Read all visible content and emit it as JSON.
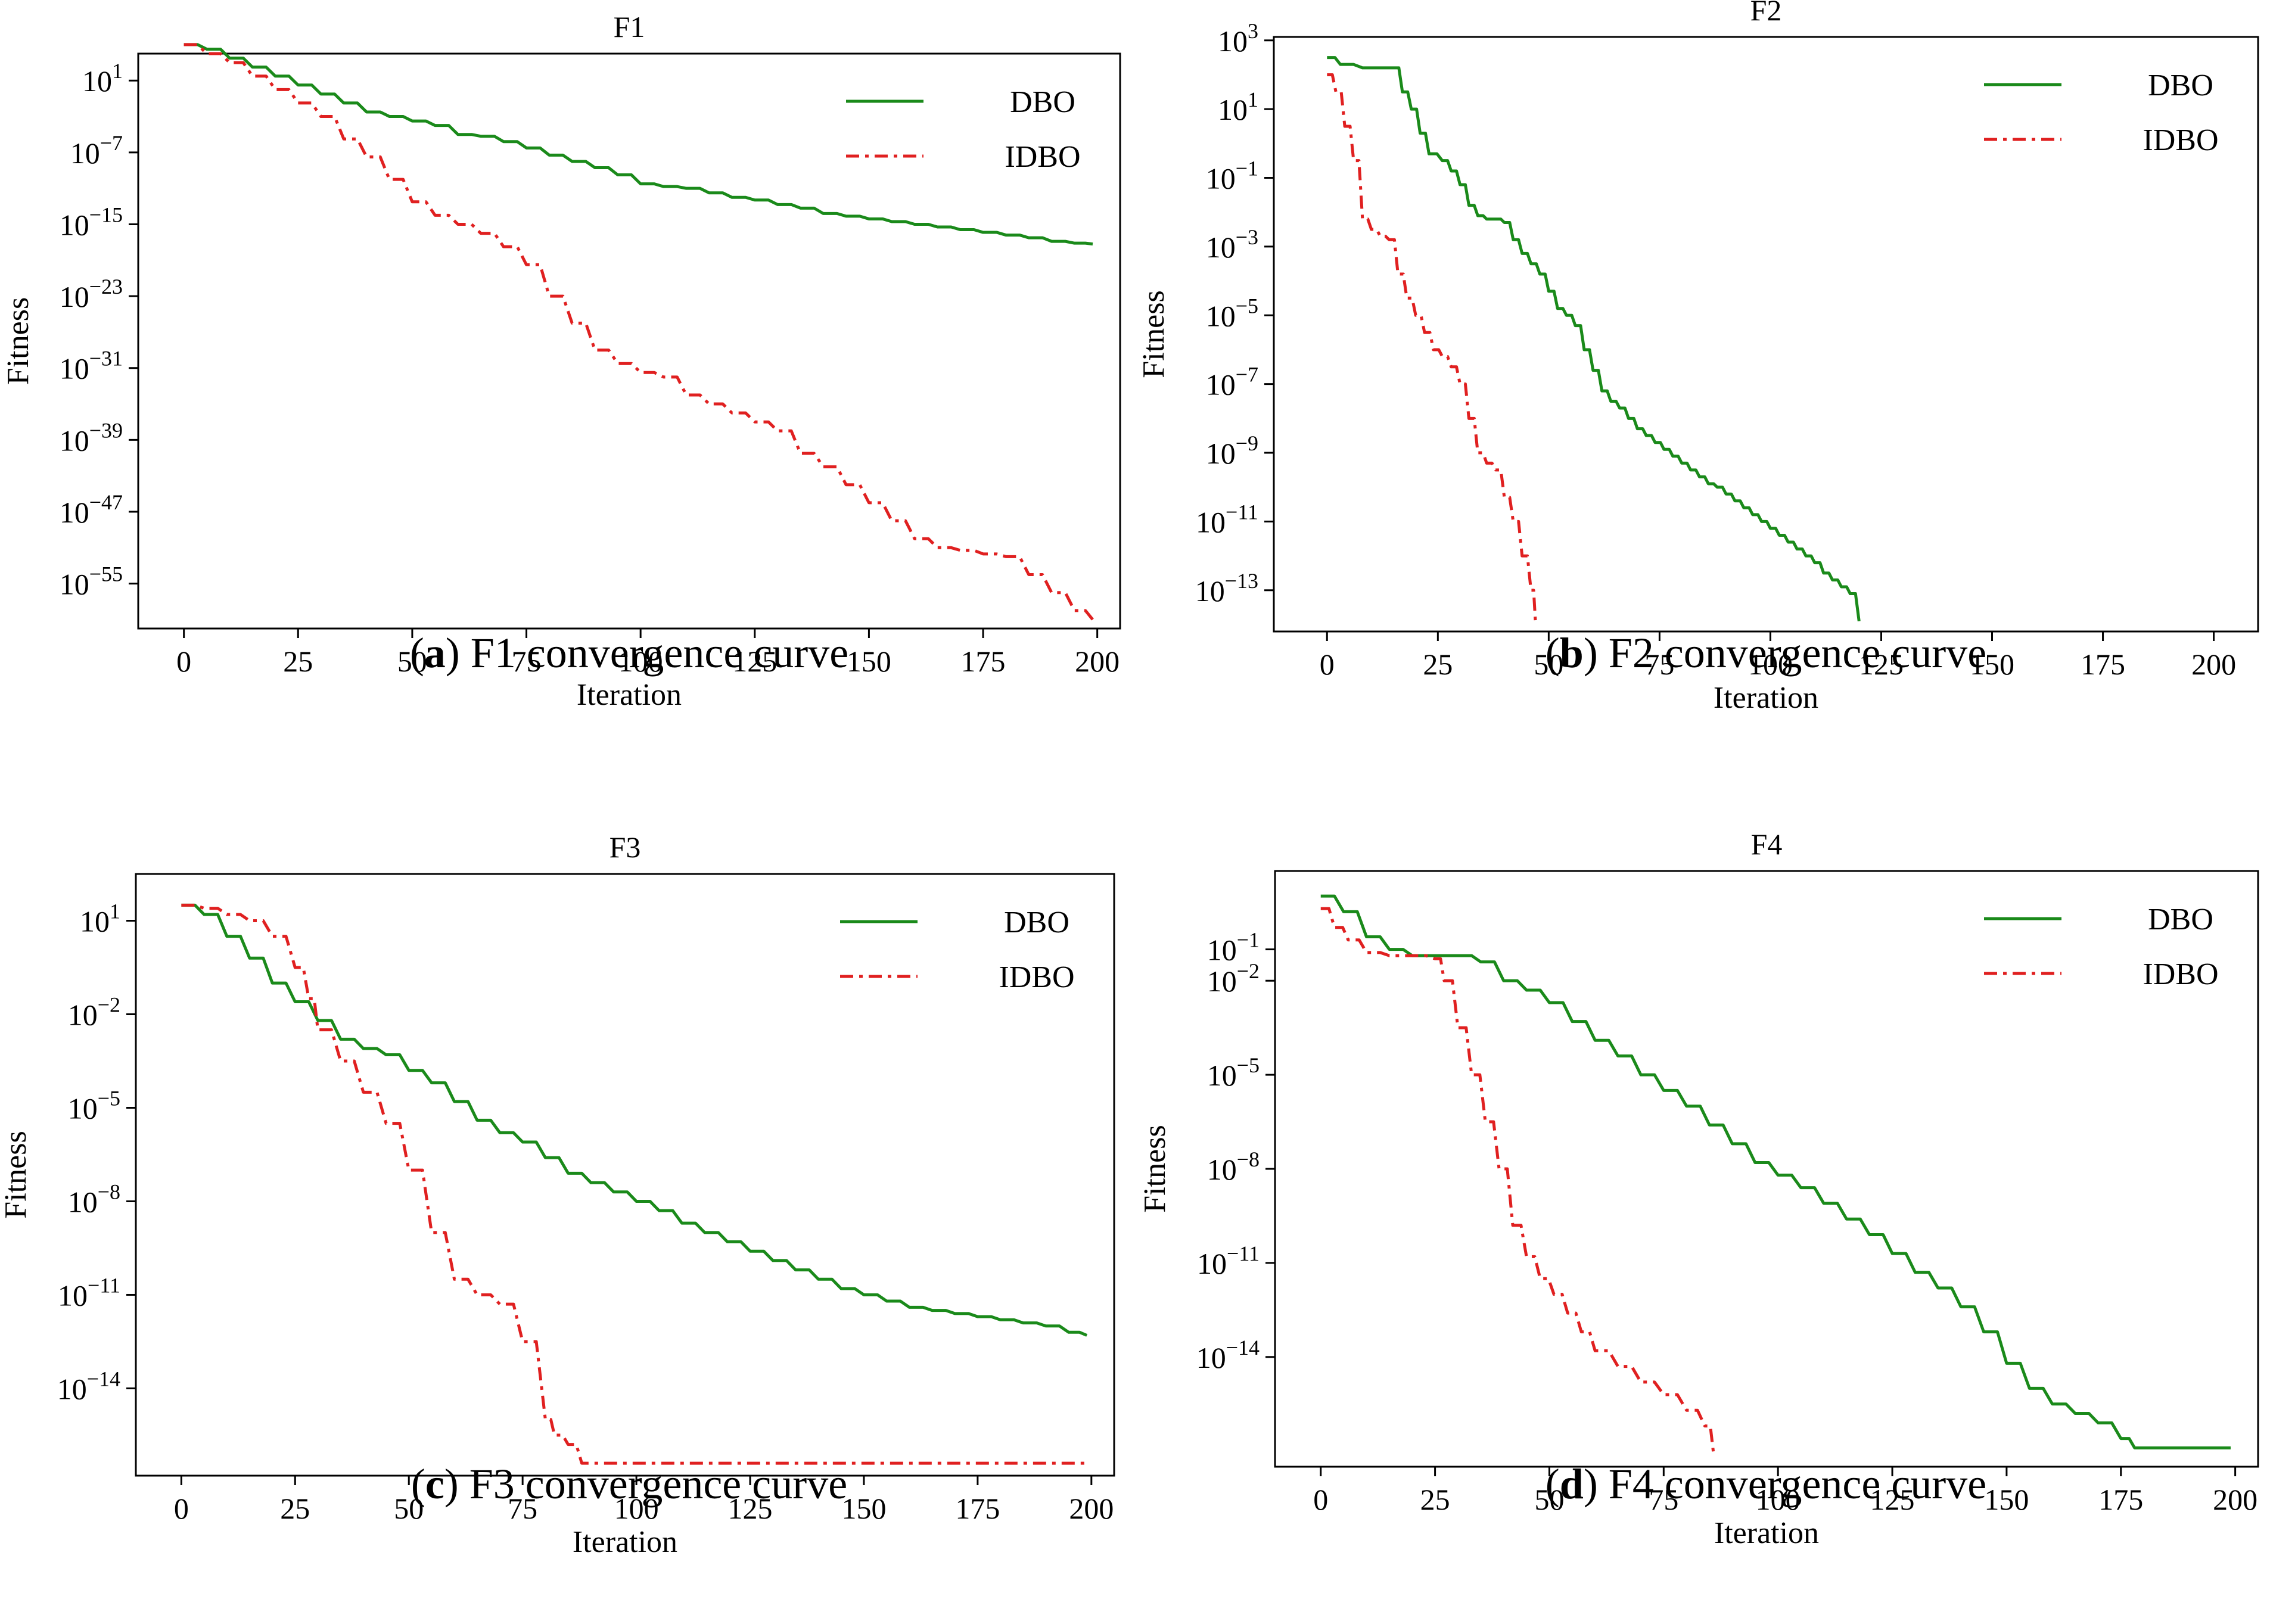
{
  "chart_data": [
    {
      "type": "line",
      "title": "F1",
      "caption_letter": "a",
      "caption_text": "F1 convergence curve",
      "xlabel": "Iteration",
      "ylabel": "Fitness",
      "yscale": "log",
      "xlim": [
        -10,
        205
      ],
      "ylim_exp": [
        -60,
        4
      ],
      "xticks": [
        0,
        25,
        50,
        75,
        100,
        125,
        150,
        175,
        200
      ],
      "yticks": [
        {
          "base": "10",
          "exp": "1",
          "value": 1
        },
        {
          "base": "10",
          "exp": "−7",
          "value": -7
        },
        {
          "base": "10",
          "exp": "−15",
          "value": -15
        },
        {
          "base": "10",
          "exp": "−23",
          "value": -23
        },
        {
          "base": "10",
          "exp": "−31",
          "value": -31
        },
        {
          "base": "10",
          "exp": "−39",
          "value": -39
        },
        {
          "base": "10",
          "exp": "−47",
          "value": -47
        },
        {
          "base": "10",
          "exp": "−55",
          "value": -55
        }
      ],
      "legend_position": "top-right",
      "series": [
        {
          "name": "DBO",
          "color": "#1a8a1a",
          "dash": "solid",
          "x": [
            0,
            5,
            10,
            15,
            20,
            25,
            30,
            35,
            40,
            45,
            50,
            55,
            60,
            65,
            70,
            75,
            80,
            85,
            90,
            95,
            100,
            105,
            110,
            115,
            120,
            125,
            130,
            135,
            140,
            145,
            150,
            155,
            160,
            165,
            170,
            175,
            180,
            185,
            190,
            195,
            199
          ],
          "log10_y": [
            5,
            4.5,
            3.5,
            2.5,
            1.5,
            0.5,
            -0.5,
            -1.5,
            -2.5,
            -3,
            -3.5,
            -4,
            -5,
            -5.2,
            -5.8,
            -6.5,
            -7.3,
            -8,
            -8.7,
            -9.5,
            -10.5,
            -10.8,
            -11,
            -11.5,
            -12,
            -12.3,
            -12.8,
            -13.2,
            -13.8,
            -14.1,
            -14.4,
            -14.7,
            -15,
            -15.3,
            -15.6,
            -15.9,
            -16.2,
            -16.5,
            -16.9,
            -17.1,
            -17.2
          ]
        },
        {
          "name": "IDBO",
          "color": "#e02020",
          "dash": "dashdot",
          "x": [
            0,
            5,
            10,
            15,
            20,
            25,
            30,
            35,
            40,
            45,
            50,
            55,
            60,
            65,
            70,
            75,
            80,
            85,
            90,
            95,
            100,
            105,
            110,
            115,
            120,
            125,
            130,
            135,
            140,
            145,
            150,
            155,
            160,
            165,
            170,
            175,
            180,
            185,
            190,
            195,
            199
          ],
          "log10_y": [
            5,
            4,
            3,
            1.5,
            0,
            -1.5,
            -3,
            -5.5,
            -7.5,
            -10,
            -12.5,
            -14,
            -15,
            -16,
            -17.5,
            -19.5,
            -23,
            -26,
            -29,
            -30.5,
            -31.5,
            -32,
            -34,
            -35,
            -36,
            -37,
            -38,
            -40.5,
            -42,
            -44,
            -46,
            -48,
            -50,
            -51,
            -51.3,
            -51.7,
            -52,
            -54,
            -56,
            -58,
            -59
          ]
        }
      ]
    },
    {
      "type": "line",
      "title": "F2",
      "caption_letter": "b",
      "caption_text": "F2 convergence curve",
      "xlabel": "Iteration",
      "ylabel": "Fitness",
      "yscale": "log",
      "xlim": [
        -12,
        210
      ],
      "ylim_exp": [
        -14.2,
        3.1
      ],
      "xticks": [
        0,
        25,
        50,
        75,
        100,
        125,
        150,
        175,
        200
      ],
      "yticks": [
        {
          "base": "10",
          "exp": "3",
          "value": 3
        },
        {
          "base": "10",
          "exp": "1",
          "value": 1
        },
        {
          "base": "10",
          "exp": "−1",
          "value": -1
        },
        {
          "base": "10",
          "exp": "−3",
          "value": -3
        },
        {
          "base": "10",
          "exp": "−5",
          "value": -5
        },
        {
          "base": "10",
          "exp": "−7",
          "value": -7
        },
        {
          "base": "10",
          "exp": "−9",
          "value": -9
        },
        {
          "base": "10",
          "exp": "−11",
          "value": -11
        },
        {
          "base": "10",
          "exp": "−13",
          "value": -13
        }
      ],
      "legend_position": "top-right",
      "series": [
        {
          "name": "DBO",
          "color": "#1a8a1a",
          "dash": "solid",
          "x": [
            0,
            3,
            8,
            15,
            17,
            19,
            21,
            23,
            26,
            28,
            30,
            32,
            34,
            36,
            38,
            40,
            42,
            44,
            46,
            48,
            50,
            52,
            54,
            56,
            58,
            60,
            62,
            64,
            66,
            68,
            70,
            72,
            74,
            76,
            78,
            80,
            82,
            84,
            86,
            88,
            90,
            92,
            94,
            96,
            98,
            100,
            102,
            104,
            106,
            108,
            110,
            112,
            114,
            116,
            118,
            120
          ],
          "log10_y": [
            2.5,
            2.3,
            2.2,
            2.2,
            1.5,
            1,
            0.3,
            -0.3,
            -0.5,
            -0.8,
            -1.2,
            -1.8,
            -2.1,
            -2.2,
            -2.2,
            -2.3,
            -2.8,
            -3.2,
            -3.5,
            -3.8,
            -4.3,
            -4.8,
            -5,
            -5.3,
            -6,
            -6.6,
            -7.2,
            -7.5,
            -7.7,
            -8,
            -8.3,
            -8.5,
            -8.7,
            -8.9,
            -9.1,
            -9.3,
            -9.5,
            -9.7,
            -9.9,
            -10,
            -10.2,
            -10.4,
            -10.6,
            -10.8,
            -11,
            -11.2,
            -11.4,
            -11.6,
            -11.8,
            -12,
            -12.2,
            -12.5,
            -12.7,
            -12.9,
            -13.1,
            -13.9
          ]
        },
        {
          "name": "IDBO",
          "color": "#e02020",
          "dash": "dashdot",
          "x": [
            0,
            2,
            4,
            6,
            8,
            10,
            12,
            14,
            16,
            18,
            20,
            22,
            24,
            26,
            28,
            30,
            32,
            34,
            36,
            38,
            40,
            42,
            44,
            46,
            47
          ],
          "log10_y": [
            2,
            1.5,
            0.5,
            -0.5,
            -2.2,
            -2.5,
            -2.7,
            -2.8,
            -3.8,
            -4.5,
            -5,
            -5.5,
            -6,
            -6.2,
            -6.5,
            -7,
            -8,
            -9,
            -9.3,
            -9.5,
            -10.3,
            -11,
            -12,
            -13,
            -13.9
          ]
        }
      ]
    },
    {
      "type": "line",
      "title": "F3",
      "caption_letter": "c",
      "caption_text": "F3 convergence curve",
      "xlabel": "Iteration",
      "ylabel": "Fitness",
      "yscale": "log",
      "xlim": [
        -10,
        205
      ],
      "ylim_exp": [
        -16.8,
        2.5
      ],
      "xticks": [
        0,
        25,
        50,
        75,
        100,
        125,
        150,
        175,
        200
      ],
      "yticks": [
        {
          "base": "10",
          "exp": "1",
          "value": 1
        },
        {
          "base": "10",
          "exp": "−2",
          "value": -2
        },
        {
          "base": "10",
          "exp": "−5",
          "value": -5
        },
        {
          "base": "10",
          "exp": "−8",
          "value": -8
        },
        {
          "base": "10",
          "exp": "−11",
          "value": -11
        },
        {
          "base": "10",
          "exp": "−14",
          "value": -14
        }
      ],
      "legend_position": "top-right",
      "series": [
        {
          "name": "DBO",
          "color": "#1a8a1a",
          "dash": "solid",
          "x": [
            0,
            5,
            10,
            15,
            20,
            25,
            30,
            35,
            40,
            45,
            50,
            55,
            60,
            65,
            70,
            75,
            80,
            85,
            90,
            95,
            100,
            105,
            110,
            115,
            120,
            125,
            130,
            135,
            140,
            145,
            150,
            155,
            160,
            165,
            170,
            175,
            180,
            185,
            190,
            195,
            199
          ],
          "log10_y": [
            1.5,
            1.2,
            0.5,
            -0.2,
            -1,
            -1.6,
            -2.2,
            -2.8,
            -3.1,
            -3.3,
            -3.8,
            -4.2,
            -4.8,
            -5.4,
            -5.8,
            -6.1,
            -6.6,
            -7.1,
            -7.4,
            -7.7,
            -8,
            -8.3,
            -8.7,
            -9,
            -9.3,
            -9.6,
            -9.9,
            -10.2,
            -10.5,
            -10.8,
            -11,
            -11.2,
            -11.4,
            -11.5,
            -11.6,
            -11.7,
            -11.8,
            -11.9,
            -12,
            -12.2,
            -12.3
          ]
        },
        {
          "name": "IDBO",
          "color": "#e02020",
          "dash": "dashdot",
          "x": [
            0,
            5,
            10,
            15,
            20,
            25,
            28,
            30,
            35,
            40,
            45,
            50,
            55,
            60,
            65,
            70,
            75,
            80,
            82,
            85,
            88,
            90,
            100,
            120,
            140,
            160,
            180,
            199
          ],
          "log10_y": [
            1.5,
            1.4,
            1.2,
            1,
            0.5,
            -0.5,
            -1.5,
            -2.5,
            -3.5,
            -4.5,
            -5.5,
            -7,
            -9,
            -10.5,
            -11,
            -11.3,
            -12.5,
            -15,
            -15.5,
            -15.8,
            -16.4,
            -16.4,
            -16.4,
            -16.4,
            -16.4,
            -16.4,
            -16.4,
            -16.4
          ]
        }
      ]
    },
    {
      "type": "line",
      "title": "F4",
      "caption_letter": "d",
      "caption_text": "F4 convergence curve",
      "xlabel": "Iteration",
      "ylabel": "Fitness",
      "yscale": "log",
      "xlim": [
        -10,
        205
      ],
      "ylim_exp": [
        -17.5,
        1.5
      ],
      "xticks": [
        0,
        25,
        50,
        75,
        100,
        125,
        150,
        175,
        200
      ],
      "yticks": [
        {
          "base": "10",
          "exp": "−1",
          "value": -1
        },
        {
          "base": "10",
          "exp": "−2",
          "value": -2
        },
        {
          "base": "10",
          "exp": "−5",
          "value": -5
        },
        {
          "base": "10",
          "exp": "−8",
          "value": -8
        },
        {
          "base": "10",
          "exp": "−11",
          "value": -11
        },
        {
          "base": "10",
          "exp": "−14",
          "value": -14
        }
      ],
      "legend_position": "top-right",
      "series": [
        {
          "name": "DBO",
          "color": "#1a8a1a",
          "dash": "solid",
          "x": [
            0,
            5,
            10,
            15,
            20,
            25,
            30,
            35,
            40,
            45,
            50,
            55,
            60,
            65,
            70,
            75,
            80,
            85,
            90,
            95,
            100,
            105,
            110,
            115,
            120,
            125,
            130,
            135,
            140,
            145,
            150,
            155,
            160,
            165,
            170,
            175,
            178,
            185,
            199
          ],
          "log10_y": [
            0.7,
            0.2,
            -0.6,
            -1,
            -1.2,
            -1.2,
            -1.2,
            -1.4,
            -2,
            -2.3,
            -2.7,
            -3.3,
            -3.9,
            -4.4,
            -5,
            -5.5,
            -6,
            -6.6,
            -7.2,
            -7.8,
            -8.2,
            -8.6,
            -9.1,
            -9.6,
            -10.1,
            -10.7,
            -11.3,
            -11.8,
            -12.4,
            -13.2,
            -14.2,
            -15,
            -15.5,
            -15.8,
            -16.1,
            -16.6,
            -16.9,
            -16.9,
            -16.9
          ]
        },
        {
          "name": "IDBO",
          "color": "#e02020",
          "dash": "dashdot",
          "x": [
            0,
            3,
            6,
            10,
            15,
            20,
            25,
            27,
            30,
            33,
            36,
            39,
            42,
            45,
            48,
            51,
            54,
            57,
            60,
            65,
            70,
            75,
            80,
            84,
            86
          ],
          "log10_y": [
            0.3,
            -0.3,
            -0.7,
            -1.1,
            -1.2,
            -1.2,
            -1.3,
            -2,
            -3.5,
            -5,
            -6.5,
            -8,
            -9.8,
            -10.8,
            -11.5,
            -12,
            -12.6,
            -13.2,
            -13.8,
            -14.3,
            -14.8,
            -15.2,
            -15.7,
            -16.2,
            -17.2
          ]
        }
      ]
    }
  ]
}
